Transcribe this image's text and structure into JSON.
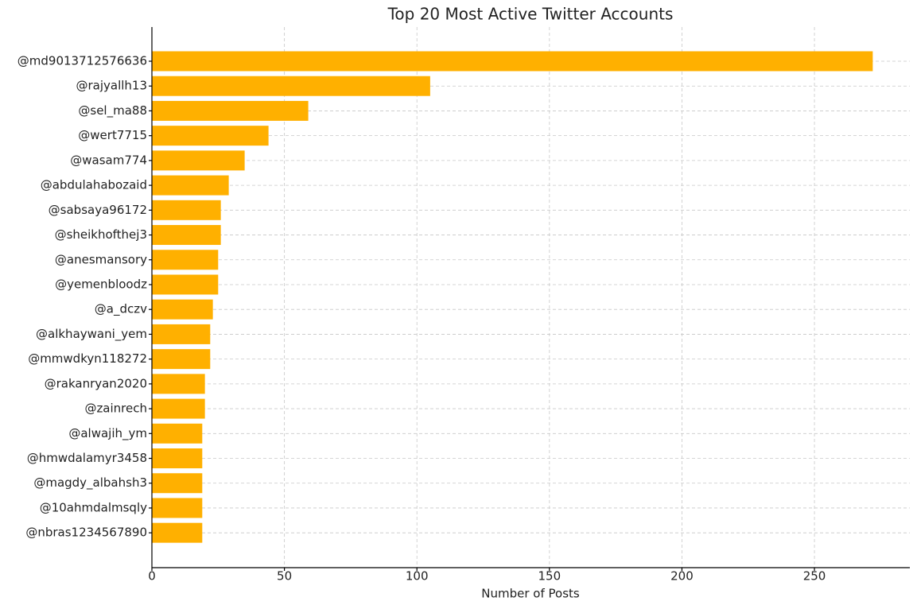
{
  "chart_data": {
    "type": "bar",
    "orientation": "horizontal",
    "title": "Top 20 Most Active Twitter Accounts",
    "x_label": "Number of Posts",
    "categories": [
      "@md9013712576636",
      "@rajyallh13",
      "@sel_ma88",
      "@wert7715",
      "@wasam774",
      "@abdulahabozaid",
      "@sabsaya96172",
      "@sheikhofthej3",
      "@anesmansory",
      "@yemenbloodz",
      "@a_dczv",
      "@alkhaywani_yem",
      "@mmwdkyn118272",
      "@rakanryan2020",
      "@zainrech",
      "@alwajih_ym",
      "@hmwdalamyr3458",
      "@magdy_albahsh3",
      "@10ahmdalmsqly",
      "@nbras1234567890"
    ],
    "values": [
      272,
      105,
      59,
      44,
      35,
      29,
      26,
      26,
      25,
      25,
      23,
      22,
      22,
      20,
      20,
      19,
      19,
      19,
      19,
      19
    ],
    "color": "#ffb000",
    "xlim": [
      0,
      286
    ],
    "xticks": [
      0,
      50,
      100,
      150,
      200,
      250
    ],
    "grid": true
  }
}
